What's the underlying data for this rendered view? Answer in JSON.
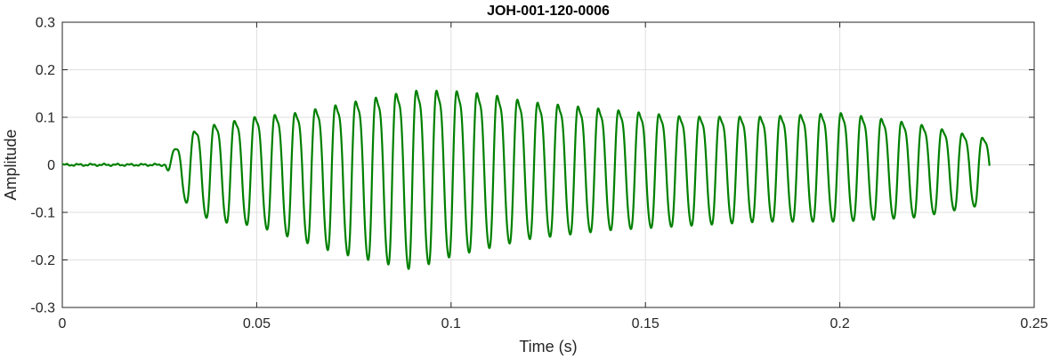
{
  "chart_data": {
    "type": "line",
    "title": "JOH-001-120-0006",
    "xlabel": "Time (s)",
    "ylabel": "Amplitude",
    "xlim": [
      0,
      0.25
    ],
    "ylim": [
      -0.3,
      0.3
    ],
    "grid": true,
    "x_ticks": [
      0,
      0.05,
      0.1,
      0.15,
      0.2,
      0.25
    ],
    "x_tick_labels": [
      "0",
      "0.05",
      "0.1",
      "0.15",
      "0.2",
      "0.25"
    ],
    "y_ticks": [
      -0.3,
      -0.2,
      -0.1,
      0,
      0.1,
      0.2,
      0.3
    ],
    "y_tick_labels": [
      "-0.3",
      "-0.2",
      "-0.1",
      "0",
      "0.1",
      "0.2",
      "0.3"
    ],
    "series": [
      {
        "color": "#008000",
        "signal_start": 0,
        "onset": 0.0265,
        "signal_end": 0.2385,
        "period": 0.0052,
        "envelope_t": [
          0.0265,
          0.029,
          0.035,
          0.04,
          0.05,
          0.06,
          0.07,
          0.08,
          0.09,
          0.1,
          0.11,
          0.12,
          0.14,
          0.16,
          0.18,
          0.2,
          0.22,
          0.238
        ],
        "envelope_peak": [
          0.0,
          0.045,
          0.1,
          0.11,
          0.13,
          0.14,
          0.16,
          0.18,
          0.2,
          0.2,
          0.19,
          0.17,
          0.15,
          0.13,
          0.13,
          0.14,
          0.11,
          0.07
        ],
        "envelope_trough": [
          0.0,
          -0.06,
          -0.115,
          -0.13,
          -0.14,
          -0.17,
          -0.2,
          -0.22,
          -0.24,
          -0.21,
          -0.19,
          -0.17,
          -0.15,
          -0.14,
          -0.13,
          -0.13,
          -0.12,
          -0.09
        ]
      }
    ]
  }
}
